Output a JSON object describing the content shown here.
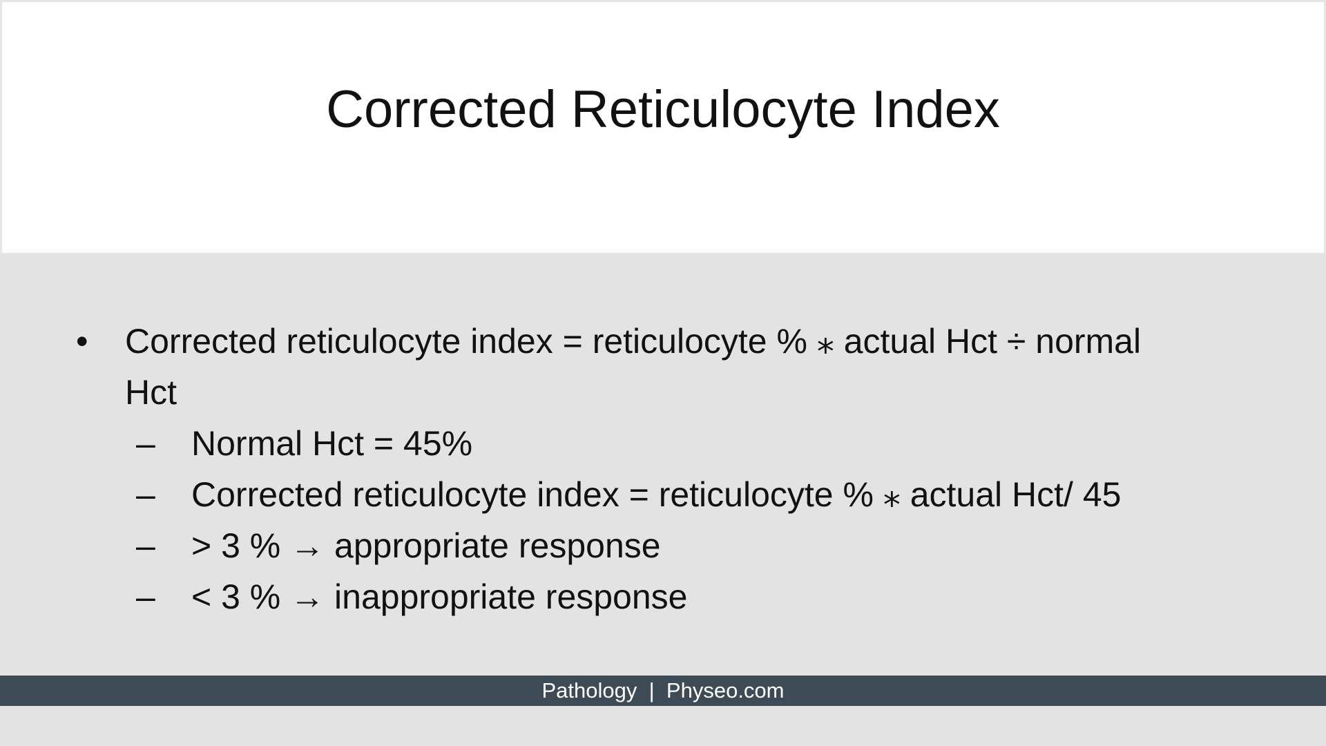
{
  "slide": {
    "title": "Corrected Reticulocyte Index",
    "main_bullet": {
      "marker": "•",
      "line1": "Corrected reticulocyte index = reticulocyte % ⁎ actual Hct ÷ normal",
      "line2": "Hct"
    },
    "sub_bullets": [
      {
        "marker": "–",
        "text": "Normal Hct = 45%"
      },
      {
        "marker": "–",
        "text": "Corrected reticulocyte index = reticulocyte %  ⁎ actual Hct/ 45"
      },
      {
        "marker": "–",
        "text": "> 3 % → appropriate response"
      },
      {
        "marker": "–",
        "text": "< 3 % → inappropriate response"
      }
    ]
  },
  "footer": {
    "left": "Pathology",
    "separator": "|",
    "right": "Physeo.com"
  },
  "colors": {
    "background": "#e3e3e3",
    "title_background": "#ffffff",
    "footer_background": "#3d4b57",
    "footer_text": "#ffffff",
    "text": "#111111"
  }
}
